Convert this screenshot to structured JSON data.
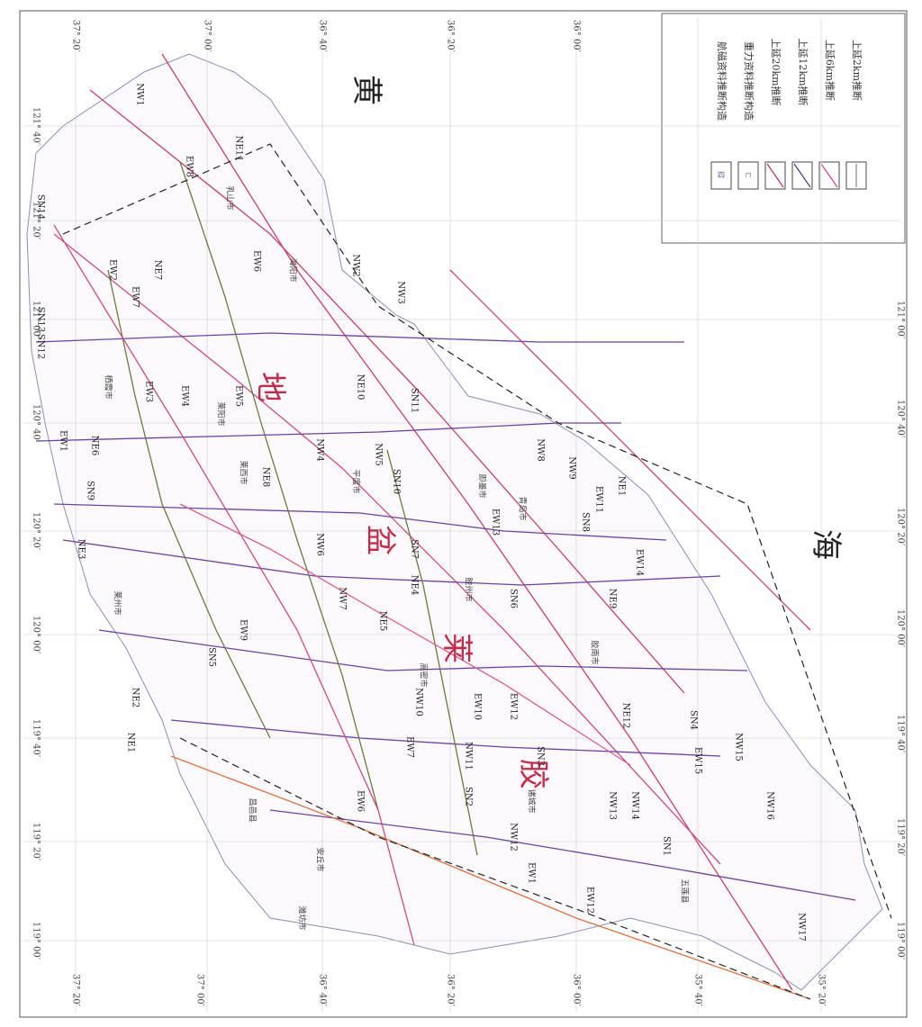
{
  "sea_labels": [
    "黄",
    "海"
  ],
  "basin_labels": [
    "地",
    "盆",
    "莱",
    "胶"
  ],
  "legend": [
    "航磁资料推断构造",
    "重力资料推断构造",
    "上延20km推断",
    "上延12km推断",
    "上延6km推断",
    "上延2km推断"
  ],
  "latitude_top": [
    "37° 20′",
    "37° 00′",
    "36° 40′",
    "36° 20′",
    "36° 00′"
  ],
  "latitude_bottom": [
    "37° 20′",
    "37° 00′",
    "36° 40′",
    "36° 20′",
    "36° 00′",
    "35° 40′",
    "35° 20′"
  ],
  "longitude_left": [
    "121° 40′",
    "121° 20′",
    "121° 00′",
    "120° 40′",
    "120° 20′",
    "120° 00′",
    "119° 40′",
    "119° 20′",
    "119° 00′"
  ],
  "longitude_right": [
    "121° 00′",
    "120° 40′",
    "120° 20′",
    "120° 00′",
    "119° 40′",
    "119° 20′",
    "119° 00′"
  ],
  "fault_labels": [
    "NW1",
    "EW8",
    "NE11",
    "SN14",
    "EW2",
    "NE7",
    "EW7",
    "EW6",
    "NW2",
    "NW3",
    "SN13",
    "SN12",
    "EW3",
    "EW4",
    "EW5",
    "EW1",
    "NE6",
    "NE8",
    "NW4",
    "NW5",
    "SN10",
    "SN11",
    "NE10",
    "NW8",
    "NW9",
    "NE1",
    "EW11",
    "SN9",
    "NE3",
    "NW6",
    "SN7",
    "EW14",
    "NE9",
    "EW13",
    "SN8",
    "NW7",
    "NE4",
    "NE5",
    "SN6",
    "EW9",
    "SN5",
    "NE2",
    "NW10",
    "EW10",
    "EW12",
    "NE12",
    "SN4",
    "NE1",
    "EW7",
    "NW11",
    "SN3",
    "EW15",
    "NW15",
    "EW6",
    "SN2",
    "NW13",
    "NW14",
    "NW16",
    "NW12",
    "SN1",
    "EW1",
    "EW12",
    "NW17"
  ],
  "city_labels": [
    "乳山市",
    "海阳市",
    "栖霞市",
    "莱阳市",
    "莱西市",
    "平度市",
    "即墨市",
    "青岛市",
    "胶州市",
    "高密市",
    "胶南市",
    "诸城市",
    "五莲县",
    "安丘市",
    "昌邑县",
    "潍坊市",
    "莱州市"
  ]
}
